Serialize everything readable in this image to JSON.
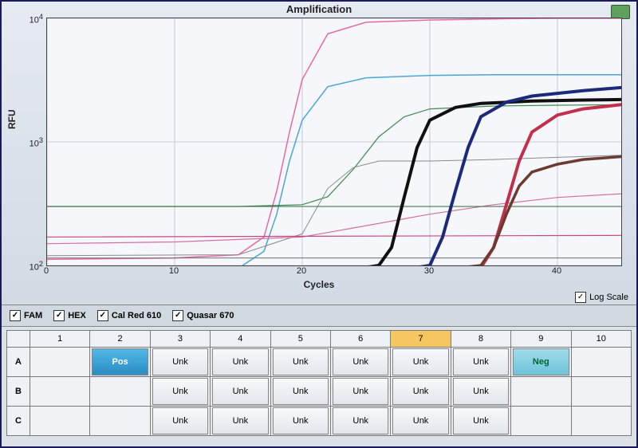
{
  "chart": {
    "title": "Amplification",
    "xlabel": "Cycles",
    "ylabel": "RFU",
    "type": "line",
    "xlim": [
      0,
      45
    ],
    "ylim_log10": [
      2,
      4
    ],
    "xticks": [
      0,
      10,
      20,
      30,
      40
    ],
    "ytick_exponents": [
      2,
      3,
      4
    ],
    "background_color": "#f6f7fb",
    "grid_color": "#c6ccd6",
    "axis_color": "#444444",
    "log_scale_label": "Log Scale",
    "log_scale_checked": true,
    "curves": [
      {
        "name": "pink-saturating",
        "color": "#e46aa7",
        "width": 1.5,
        "x": [
          0,
          10,
          15,
          17,
          18,
          19,
          20,
          22,
          25,
          30,
          35,
          40,
          45
        ],
        "y": [
          112,
          115,
          122,
          170,
          400,
          1200,
          3200,
          7500,
          9300,
          9700,
          9900,
          10000,
          10000
        ]
      },
      {
        "name": "cyan-saturating",
        "color": "#4aa6d8",
        "width": 1.5,
        "x": [
          0,
          10,
          15,
          17,
          18,
          19,
          20,
          22,
          25,
          30,
          35,
          40,
          45
        ],
        "y": [
          90,
          92,
          95,
          130,
          260,
          700,
          1500,
          2800,
          3300,
          3450,
          3500,
          3500,
          3500
        ]
      },
      {
        "name": "green-mid",
        "color": "#3f8a4d",
        "width": 1.2,
        "x": [
          0,
          15,
          20,
          22,
          24,
          26,
          28,
          30,
          35,
          40,
          45
        ],
        "y": [
          300,
          300,
          310,
          360,
          600,
          1100,
          1600,
          1850,
          1950,
          1980,
          2000
        ]
      },
      {
        "name": "grey-faint",
        "color": "#8a8a8a",
        "width": 1.0,
        "x": [
          0,
          15,
          20,
          22,
          24,
          26,
          30,
          35,
          45
        ],
        "y": [
          120,
          122,
          180,
          420,
          620,
          700,
          700,
          720,
          780
        ]
      },
      {
        "name": "pink-slow",
        "color": "#d36fa1",
        "width": 1.2,
        "x": [
          0,
          10,
          20,
          25,
          30,
          35,
          40,
          45
        ],
        "y": [
          150,
          155,
          170,
          210,
          260,
          310,
          355,
          380
        ]
      },
      {
        "name": "magenta-flat",
        "color": "#c54784",
        "width": 1.2,
        "x": [
          0,
          45
        ],
        "y": [
          170,
          175
        ]
      },
      {
        "name": "green-flat",
        "color": "#2e6a3a",
        "width": 1.0,
        "x": [
          0,
          45
        ],
        "y": [
          300,
          300
        ]
      },
      {
        "name": "baseline-1",
        "color": "#555555",
        "width": 1.0,
        "x": [
          0,
          45
        ],
        "y": [
          95,
          97
        ]
      },
      {
        "name": "baseline-2",
        "color": "#707070",
        "width": 1.0,
        "x": [
          0,
          45
        ],
        "y": [
          115,
          115
        ]
      },
      {
        "name": "thick-black-1",
        "color": "#101010",
        "width": 4.0,
        "x": [
          0,
          24,
          26,
          27,
          28,
          29,
          30,
          32,
          34,
          38,
          42,
          45
        ],
        "y": [
          93,
          93,
          100,
          140,
          360,
          900,
          1500,
          1900,
          2050,
          2140,
          2180,
          2200
        ]
      },
      {
        "name": "thick-navy-2",
        "color": "#1b2a7a",
        "width": 4.0,
        "x": [
          0,
          28,
          30,
          31,
          32,
          33,
          34,
          36,
          38,
          42,
          45
        ],
        "y": [
          93,
          93,
          100,
          170,
          400,
          900,
          1600,
          2100,
          2350,
          2600,
          2750
        ]
      },
      {
        "name": "thick-red-3",
        "color": "#c22f4b",
        "width": 4.0,
        "x": [
          0,
          32,
          34,
          35,
          36,
          37,
          38,
          40,
          42,
          45
        ],
        "y": [
          93,
          93,
          96,
          140,
          310,
          700,
          1200,
          1650,
          1850,
          2000
        ]
      },
      {
        "name": "thick-brown-4",
        "color": "#6a3b2e",
        "width": 3.5,
        "x": [
          0,
          32,
          34,
          35,
          36,
          37,
          38,
          40,
          42,
          45
        ],
        "y": [
          95,
          95,
          100,
          140,
          260,
          440,
          570,
          660,
          720,
          760
        ]
      }
    ]
  },
  "channels": [
    {
      "label": "FAM",
      "checked": true
    },
    {
      "label": "HEX",
      "checked": true
    },
    {
      "label": "Cal Red 610",
      "checked": true
    },
    {
      "label": "Quasar 670",
      "checked": true
    }
  ],
  "plate": {
    "columns": [
      "1",
      "2",
      "3",
      "4",
      "5",
      "6",
      "7",
      "8",
      "9",
      "10"
    ],
    "selected_column": "7",
    "rows": [
      "A",
      "B",
      "C"
    ],
    "labels": {
      "pos": "Pos",
      "neg": "Neg",
      "unk": "Unk"
    },
    "well_colors": {
      "pos": "#3aa1d4",
      "neg": "#7fcddd",
      "unk": "#edf0f4",
      "header": "#eef1f5",
      "selected_header": "#f6c660"
    },
    "wells": {
      "A": [
        null,
        "pos",
        "unk",
        "unk",
        "unk",
        "unk",
        "unk",
        "unk",
        "neg",
        null
      ],
      "B": [
        null,
        null,
        "unk",
        "unk",
        "unk",
        "unk",
        "unk",
        "unk",
        null,
        null
      ],
      "C": [
        null,
        null,
        "unk",
        "unk",
        "unk",
        "unk",
        "unk",
        "unk",
        null,
        null
      ]
    }
  }
}
